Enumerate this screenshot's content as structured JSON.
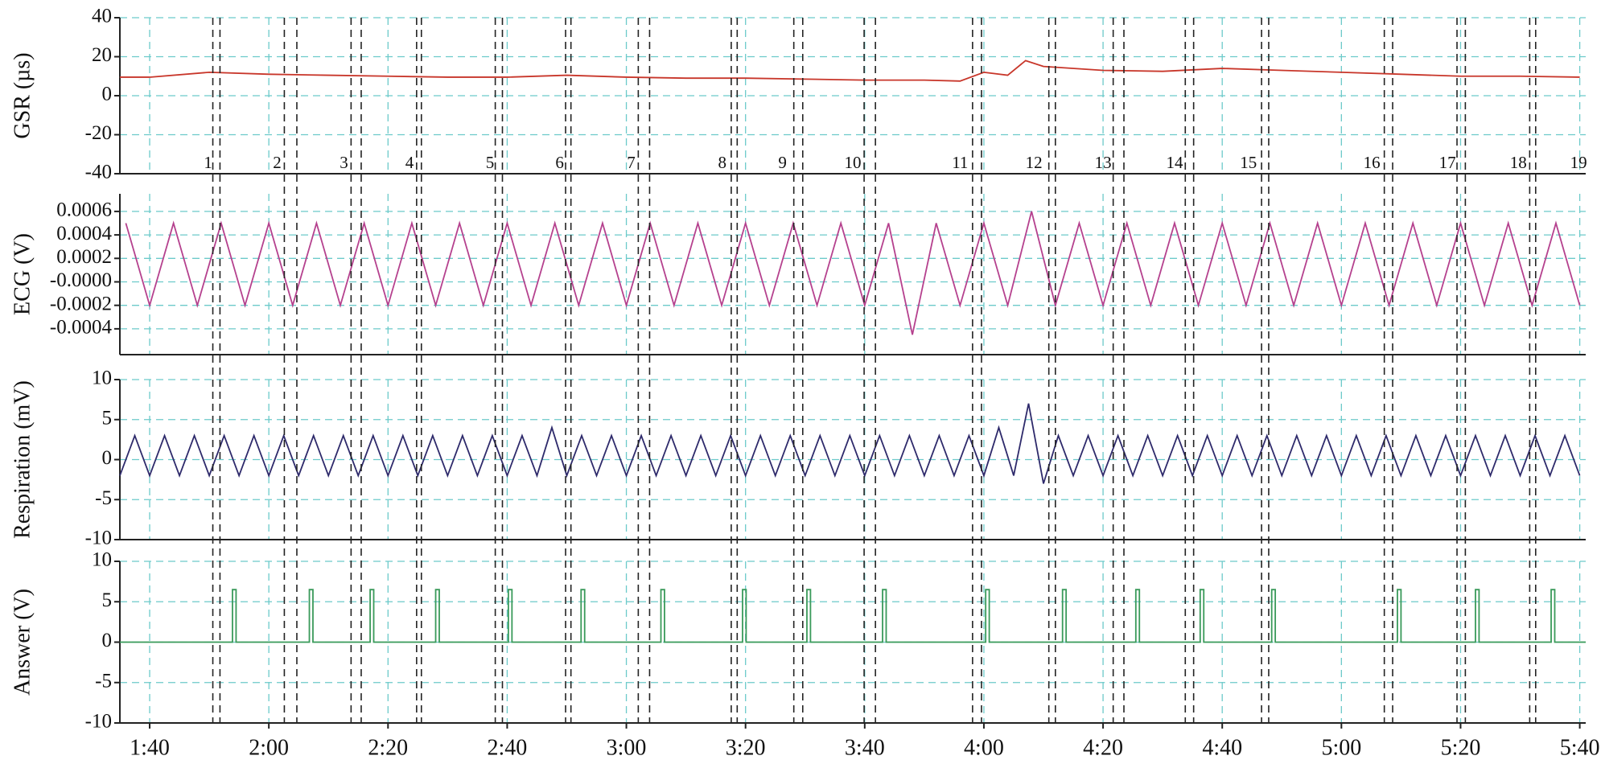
{
  "chart_data": [
    {
      "type": "line",
      "ylabel": "GSR (µs)",
      "color": "#c8362a",
      "xlim": [
        95,
        341
      ],
      "ylim": [
        -40,
        40
      ],
      "yticks": [
        -40,
        -20,
        0,
        20,
        40
      ],
      "grid": true,
      "x": [
        95,
        100,
        110,
        120,
        130,
        140,
        150,
        160,
        170,
        180,
        190,
        200,
        210,
        220,
        230,
        236,
        240,
        244,
        247,
        250,
        260,
        270,
        280,
        290,
        300,
        310,
        320,
        330,
        340
      ],
      "values": [
        9.5,
        9.5,
        12,
        11,
        10.5,
        10,
        9.5,
        9.5,
        10.5,
        9.5,
        9,
        9,
        8.5,
        8,
        8,
        7.5,
        12,
        10.5,
        18,
        15,
        13,
        12.5,
        14,
        13,
        12,
        11,
        10,
        10,
        9.5
      ],
      "annotations": {
        "labels": [
          1,
          2,
          3,
          4,
          5,
          6,
          7,
          8,
          9,
          10,
          11,
          12,
          13,
          14,
          15,
          16,
          17,
          18,
          19
        ],
        "x": [
          109.8,
          121.4,
          132.6,
          143.6,
          157.1,
          168.8,
          180.8,
          196.1,
          206.2,
          218.0,
          236.0,
          248.4,
          260.0,
          272.0,
          284.4,
          305.1,
          317.8,
          329.7,
          339.8
        ],
        "lines": [
          110.6,
          111.8,
          122.6,
          124.7,
          133.8,
          135.5,
          144.8,
          145.6,
          158.0,
          159.2,
          169.8,
          170.7,
          182.0,
          183.9,
          197.6,
          198.6,
          208.1,
          209.6,
          219.9,
          221.8,
          238.1,
          239.6,
          250.9,
          252.0,
          261.7,
          263.5,
          273.8,
          275.2,
          286.6,
          287.8,
          307.2,
          308.6,
          319.4,
          320.8,
          331.6,
          332.6
        ]
      }
    },
    {
      "type": "line",
      "ylabel": "ECG (V)",
      "color": "#b5418e",
      "xlim": [
        95,
        341
      ],
      "ylim": [
        -0.00062,
        0.00075
      ],
      "yticks": [
        -0.0004,
        -0.0002,
        {
          "value": 0,
          "label": "-0.0000"
        },
        0.0002,
        0.0004,
        0.0006
      ],
      "grid": true,
      "x": [
        96,
        100,
        104,
        108,
        112,
        116,
        120,
        124,
        128,
        132,
        136,
        140,
        144,
        148,
        152,
        156,
        160,
        164,
        168,
        172,
        176,
        180,
        184,
        188,
        192,
        196,
        200,
        204,
        208,
        212,
        216,
        220,
        224,
        228,
        232,
        236,
        240,
        244,
        248,
        252,
        256,
        260,
        264,
        268,
        272,
        276,
        280,
        284,
        288,
        292,
        296,
        300,
        304,
        308,
        312,
        316,
        320,
        324,
        328,
        332,
        336,
        340
      ],
      "values": [
        0.0005,
        -0.0002,
        0.0005,
        -0.0002,
        0.0005,
        -0.0002,
        0.0005,
        -0.0002,
        0.0005,
        -0.0002,
        0.0005,
        -0.0002,
        0.0005,
        -0.0002,
        0.0005,
        -0.0002,
        0.0005,
        -0.0002,
        0.0005,
        -0.0002,
        0.0005,
        -0.0002,
        0.0005,
        -0.0002,
        0.0005,
        -0.0002,
        0.0005,
        -0.0002,
        0.0005,
        -0.0002,
        0.0005,
        -0.0002,
        0.0005,
        -0.00045,
        0.0005,
        -0.0002,
        0.0005,
        -0.0002,
        0.0006,
        -0.0002,
        0.0005,
        -0.0002,
        0.0005,
        -0.0002,
        0.0005,
        -0.0002,
        0.0005,
        -0.0002,
        0.0005,
        -0.0002,
        0.0005,
        -0.0002,
        0.0005,
        -0.0002,
        0.0005,
        -0.0002,
        0.0005,
        -0.0002,
        0.0005,
        -0.0002,
        0.0005,
        -0.0002
      ]
    },
    {
      "type": "line",
      "ylabel": "Respiration (mV)",
      "color": "#2e2a6b",
      "xlim": [
        95,
        341
      ],
      "ylim": [
        -10,
        10
      ],
      "yticks": [
        -10,
        -5,
        0,
        5,
        10
      ],
      "grid": true,
      "x": [
        95,
        97.5,
        100,
        102.5,
        105,
        107.5,
        110,
        112.5,
        115,
        117.5,
        120,
        122.5,
        125,
        127.5,
        130,
        132.5,
        135,
        137.5,
        140,
        142.5,
        145,
        147.5,
        150,
        152.5,
        155,
        157.5,
        160,
        162.5,
        165,
        167.5,
        170,
        172.5,
        175,
        177.5,
        180,
        182.5,
        185,
        187.5,
        190,
        192.5,
        195,
        197.5,
        200,
        202.5,
        205,
        207.5,
        210,
        212.5,
        215,
        217.5,
        220,
        222.5,
        225,
        227.5,
        230,
        232.5,
        235,
        237.5,
        240,
        242.5,
        245,
        247.5,
        250,
        252.5,
        255,
        257.5,
        260,
        262.5,
        265,
        267.5,
        270,
        272.5,
        275,
        277.5,
        280,
        282.5,
        285,
        287.5,
        290,
        292.5,
        295,
        297.5,
        300,
        302.5,
        305,
        307.5,
        310,
        312.5,
        315,
        317.5,
        320,
        322.5,
        325,
        327.5,
        330,
        332.5,
        335,
        337.5,
        340
      ],
      "values": [
        -2,
        3,
        -2,
        3,
        -2,
        3,
        -2,
        3,
        -2,
        3,
        -2,
        3,
        -2,
        3,
        -2,
        3,
        -2,
        3,
        -2,
        3,
        -2,
        3,
        -2,
        3,
        -2,
        3,
        -2,
        3,
        -2,
        4,
        -2,
        3,
        -2,
        3,
        -2,
        3,
        -2,
        3,
        -2,
        3,
        -2,
        3,
        -2,
        3,
        -2,
        3,
        -2,
        3,
        -2,
        3,
        -2,
        3,
        -2,
        3,
        -2,
        3,
        -2,
        3,
        -2,
        4,
        -2,
        7,
        -3,
        3,
        -2,
        3,
        -2,
        3,
        -2,
        3,
        -2,
        3,
        -2,
        3,
        -2,
        3,
        -2,
        3,
        -2,
        3,
        -2,
        3,
        -2,
        3,
        -2,
        3,
        -2,
        3,
        -2,
        3,
        -2,
        3,
        -2,
        3,
        -2,
        3,
        -2,
        3,
        -2
      ]
    },
    {
      "type": "line",
      "ylabel": "Answer (V)",
      "color": "#3a9a5a",
      "xlim": [
        95,
        341
      ],
      "ylim": [
        -10,
        10
      ],
      "yticks": [
        -10,
        -5,
        0,
        5,
        10
      ],
      "grid": true,
      "xticks": [
        {
          "value": 100,
          "label": "1:40"
        },
        {
          "value": 120,
          "label": "2:00"
        },
        {
          "value": 140,
          "label": "2:20"
        },
        {
          "value": 160,
          "label": "2:40"
        },
        {
          "value": 180,
          "label": "3:00"
        },
        {
          "value": 200,
          "label": "3:20"
        },
        {
          "value": 220,
          "label": "3:40"
        },
        {
          "value": 240,
          "label": "4:00"
        },
        {
          "value": 260,
          "label": "4:20"
        },
        {
          "value": 280,
          "label": "4:40"
        },
        {
          "value": 300,
          "label": "5:00"
        },
        {
          "value": 320,
          "label": "5:20"
        },
        {
          "value": 340,
          "label": "5:40"
        }
      ],
      "x": [
        95,
        113.9,
        113.9,
        114.5,
        114.5,
        126.8,
        126.8,
        127.4,
        127.4,
        137.0,
        137.0,
        137.6,
        137.6,
        148.0,
        148.0,
        148.6,
        148.6,
        160.2,
        160.2,
        160.8,
        160.8,
        172.4,
        172.4,
        173,
        173,
        185.8,
        185.8,
        186.4,
        186.4,
        199.5,
        199.5,
        200.1,
        200.1,
        210.3,
        210.3,
        210.9,
        210.9,
        223.0,
        223.0,
        223.6,
        223.6,
        240.3,
        240.3,
        240.9,
        240.9,
        253.2,
        253.2,
        253.8,
        253.8,
        265.5,
        265.5,
        266.1,
        266.1,
        276.3,
        276.3,
        276.9,
        276.9,
        288.3,
        288.3,
        288.9,
        288.9,
        309.4,
        309.4,
        310,
        310,
        322.5,
        322.5,
        323.1,
        323.1,
        335.2,
        335.2,
        335.8,
        335.8,
        341
      ],
      "values": [
        0,
        0,
        6.5,
        6.5,
        0,
        0,
        6.5,
        6.5,
        0,
        0,
        6.5,
        6.5,
        0,
        0,
        6.5,
        6.5,
        0,
        0,
        6.5,
        6.5,
        0,
        0,
        6.5,
        6.5,
        0,
        0,
        6.5,
        6.5,
        0,
        0,
        6.5,
        6.5,
        0,
        0,
        6.5,
        6.5,
        0,
        0,
        6.5,
        6.5,
        0,
        0,
        6.5,
        6.5,
        0,
        0,
        6.5,
        6.5,
        0,
        0,
        6.5,
        6.5,
        0,
        0,
        6.5,
        6.5,
        0,
        0,
        6.5,
        6.5,
        0,
        0,
        6.5,
        6.5,
        0,
        0,
        6.5,
        6.5,
        0,
        0,
        6.5,
        6.5,
        0,
        0
      ]
    }
  ]
}
